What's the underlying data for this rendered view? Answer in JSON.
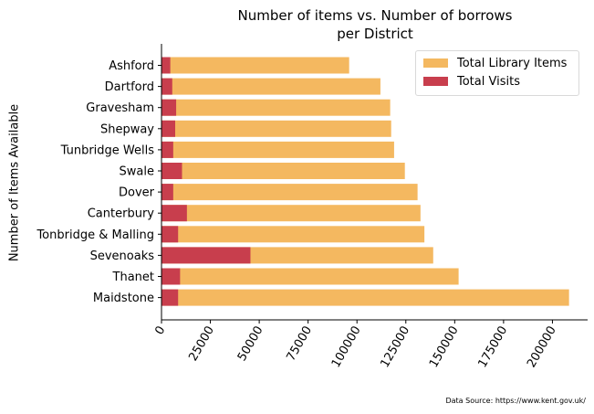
{
  "colors": {
    "items": "#f4b860",
    "visits": "#c83e4d",
    "axis": "#000000"
  },
  "chart_data": {
    "type": "bar",
    "orientation": "horizontal",
    "stacked": false,
    "title_line1": "Number of items vs. Number of borrows",
    "title_line2": "per District",
    "xlabel": "",
    "ylabel": "Number of Items Available",
    "xlim": [
      0,
      218000
    ],
    "xticks": [
      0,
      25000,
      50000,
      75000,
      100000,
      125000,
      150000,
      175000,
      200000
    ],
    "xtick_labels": [
      "0",
      "25000",
      "50000",
      "75000",
      "100000",
      "125000",
      "150000",
      "175000",
      "200000"
    ],
    "categories": [
      "Ashford",
      "Dartford",
      "Gravesham",
      "Shepway",
      "Tunbridge Wells",
      "Swale",
      "Dover",
      "Canterbury",
      "Tonbridge & Malling",
      "Sevenoaks",
      "Thanet",
      "Maidstone"
    ],
    "series": [
      {
        "name": "Total Library Items",
        "values": [
          96000,
          112000,
          117000,
          117500,
          119000,
          124500,
          131000,
          132500,
          134500,
          139000,
          152000,
          208500
        ]
      },
      {
        "name": "Total Visits",
        "values": [
          4500,
          5500,
          7500,
          7000,
          6000,
          10500,
          6000,
          13000,
          8500,
          45500,
          9500,
          8500
        ]
      }
    ],
    "legend_position": "top-right",
    "grid": false
  },
  "source_note": "Data Source: https://www.kent.gov.uk/"
}
